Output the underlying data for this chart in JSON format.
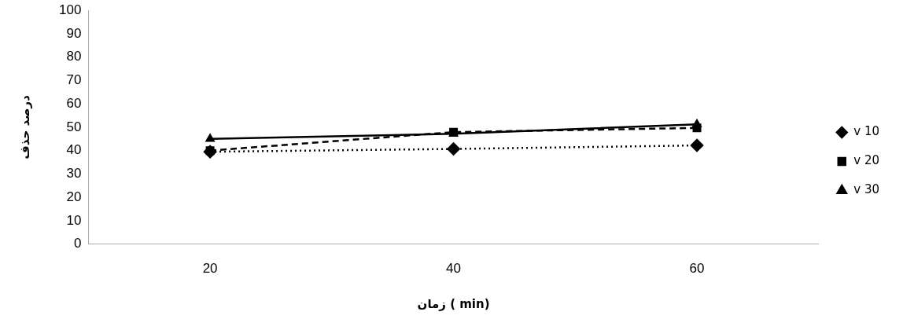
{
  "chart_data": {
    "type": "line",
    "xlabel": "زمان ( min)",
    "ylabel": "درصد حذف",
    "categories": [
      "20",
      "40",
      "60"
    ],
    "ylim": [
      0,
      100
    ],
    "yticks": [
      0,
      10,
      20,
      30,
      40,
      50,
      60,
      70,
      80,
      90,
      100
    ],
    "grid": false,
    "legend": "right",
    "series": [
      {
        "name": "v 10",
        "color": "#000000",
        "values": [
          39.5,
          40.7,
          42.2
        ],
        "marker": "diamond",
        "line_style": "dotted"
      },
      {
        "name": "v 20",
        "color": "#000000",
        "values": [
          40,
          47.9,
          49.7
        ],
        "marker": "square",
        "line_style": "dashed"
      },
      {
        "name": "v 30",
        "color": "#000000",
        "values": [
          45,
          47.2,
          51.2
        ],
        "marker": "triangle",
        "line_style": "solid"
      }
    ]
  }
}
